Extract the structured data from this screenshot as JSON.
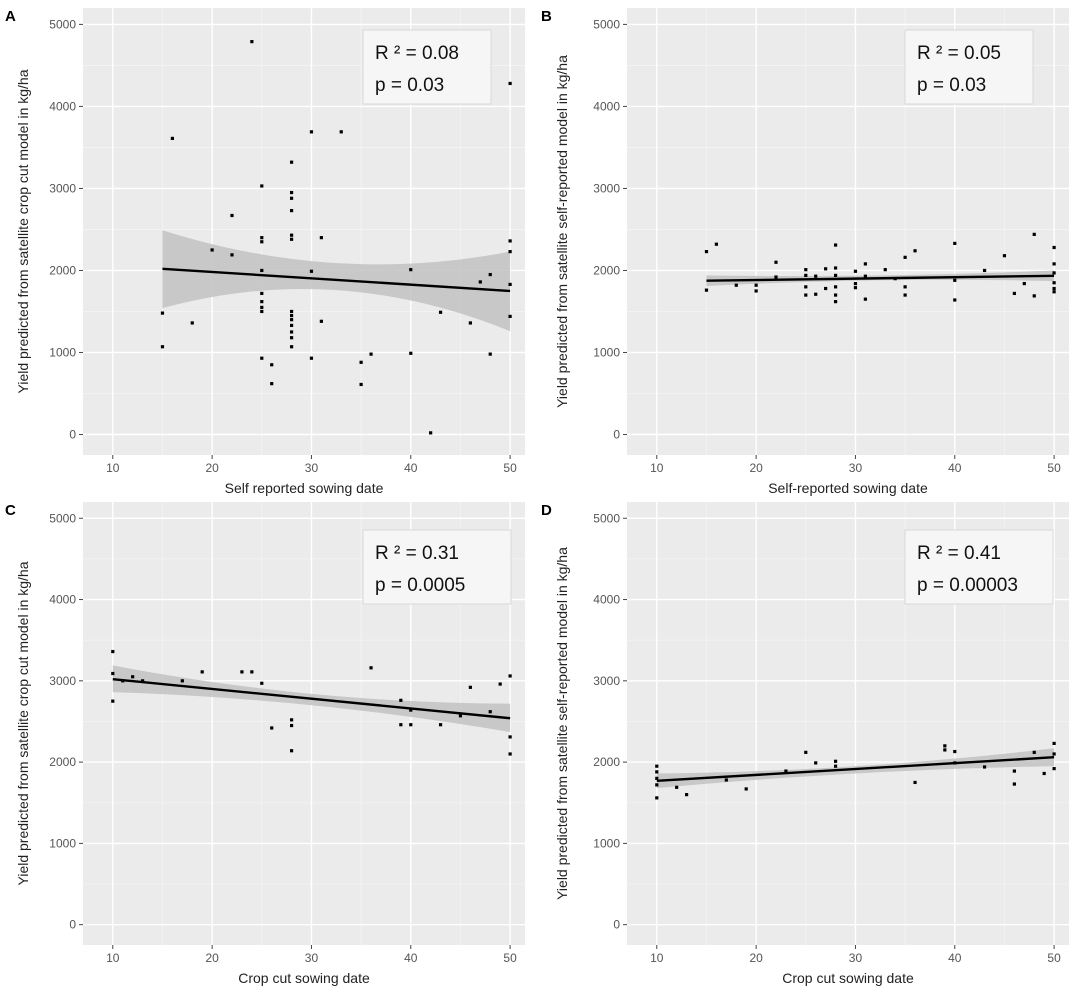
{
  "figure": {
    "colors": {
      "panel_bg": "#ebebeb",
      "grid_major": "#ffffff",
      "grid_minor": "#f4f4f4",
      "ribbon": "#c2c2c2",
      "line": "#000000",
      "point": "#000000",
      "annotation_bg": "#f6f6f6"
    }
  },
  "chart_data": [
    {
      "panel": "A",
      "type": "scatter",
      "xlabel": "Self reported sowing date",
      "ylabel": "Yield predicted from satellite crop cut model in kg/ha",
      "xlim": [
        7,
        51.5
      ],
      "ylim": [
        -250,
        5200
      ],
      "xticks": [
        10,
        20,
        30,
        40,
        50
      ],
      "yticks": [
        0,
        1000,
        2000,
        3000,
        4000,
        5000
      ],
      "annotation": {
        "r2": "R ² = 0.08",
        "p": "p = 0.03"
      },
      "fit": {
        "x": [
          15,
          50
        ],
        "y": [
          2020,
          1750
        ]
      },
      "band": {
        "x": [
          15,
          32.5,
          50
        ],
        "lower": [
          1540,
          1760,
          1260
        ],
        "upper": [
          2490,
          2090,
          2230
        ]
      },
      "points": {
        "x": [
          15,
          15,
          16,
          18,
          20,
          22,
          22,
          24,
          25,
          25,
          25,
          25,
          25,
          25,
          25,
          25,
          25,
          26,
          26,
          28,
          28,
          28,
          28,
          28,
          28,
          28,
          28,
          28,
          28,
          28,
          28,
          28,
          30,
          30,
          30,
          31,
          31,
          33,
          35,
          35,
          36,
          40,
          40,
          42,
          43,
          46,
          47,
          48,
          48,
          50,
          50,
          50,
          50,
          50
        ],
        "y": [
          1070,
          1480,
          3610,
          1360,
          2250,
          2670,
          2190,
          4790,
          3030,
          2400,
          2350,
          2000,
          1720,
          1620,
          1550,
          1500,
          930,
          850,
          620,
          3320,
          2950,
          2880,
          2730,
          2430,
          2380,
          1500,
          1450,
          1400,
          1330,
          1250,
          1180,
          1070,
          3690,
          1990,
          930,
          2400,
          1380,
          3690,
          880,
          610,
          980,
          2010,
          990,
          20,
          1490,
          1360,
          1860,
          1950,
          980,
          4280,
          2360,
          2230,
          1830,
          1440
        ]
      }
    },
    {
      "panel": "B",
      "type": "scatter",
      "xlabel": "Self-reported sowing date",
      "ylabel": "Yield predicted from satellite self-reported model in kg/ha",
      "xlim": [
        7,
        51.5
      ],
      "ylim": [
        -250,
        5200
      ],
      "xticks": [
        10,
        20,
        30,
        40,
        50
      ],
      "yticks": [
        0,
        1000,
        2000,
        3000,
        4000,
        5000
      ],
      "annotation": {
        "r2": "R ² = 0.05",
        "p": "p = 0.03"
      },
      "fit": {
        "x": [
          15,
          50
        ],
        "y": [
          1875,
          1935
        ]
      },
      "band": {
        "x": [
          15,
          32.5,
          50
        ],
        "lower": [
          1810,
          1880,
          1870
        ],
        "upper": [
          1940,
          1940,
          2000
        ]
      },
      "points": {
        "x": [
          15,
          15,
          16,
          18,
          20,
          20,
          22,
          22,
          25,
          25,
          25,
          25,
          26,
          26,
          27,
          27,
          28,
          28,
          28,
          28,
          28,
          28,
          30,
          30,
          30,
          31,
          31,
          31,
          33,
          34,
          35,
          35,
          35,
          36,
          40,
          40,
          40,
          43,
          45,
          46,
          47,
          48,
          48,
          50,
          50,
          50,
          50,
          50,
          50
        ],
        "y": [
          2230,
          1760,
          2320,
          1820,
          1820,
          1750,
          2100,
          1920,
          2010,
          1940,
          1800,
          1700,
          1930,
          1710,
          2020,
          1780,
          2310,
          2030,
          1940,
          1800,
          1700,
          1620,
          1990,
          1840,
          1790,
          2080,
          1930,
          1650,
          2010,
          1900,
          2160,
          1800,
          1700,
          2240,
          2330,
          1880,
          1640,
          2000,
          2180,
          1720,
          1840,
          2440,
          1690,
          2280,
          2080,
          1970,
          1850,
          1780,
          1740
        ]
      }
    },
    {
      "panel": "C",
      "type": "scatter",
      "xlabel": "Crop cut sowing date",
      "ylabel": "Yield predicted from satellite crop cut model in kg/ha",
      "xlim": [
        7,
        51.5
      ],
      "ylim": [
        -250,
        5200
      ],
      "xticks": [
        10,
        20,
        30,
        40,
        50
      ],
      "yticks": [
        0,
        1000,
        2000,
        3000,
        4000,
        5000
      ],
      "annotation": {
        "r2": "R ² = 0.31",
        "p": "p = 0.0005"
      },
      "fit": {
        "x": [
          10,
          50
        ],
        "y": [
          3020,
          2540
        ]
      },
      "band": {
        "x": [
          10,
          30,
          50
        ],
        "lower": [
          2860,
          2700,
          2370
        ],
        "upper": [
          3190,
          2840,
          2720
        ]
      },
      "points": {
        "x": [
          10,
          10,
          10,
          11,
          12,
          13,
          17,
          19,
          23,
          24,
          25,
          26,
          28,
          28,
          28,
          36,
          39,
          39,
          40,
          40,
          43,
          45,
          46,
          48,
          49,
          50,
          50,
          50
        ],
        "y": [
          3360,
          3090,
          2750,
          3000,
          3050,
          3000,
          3000,
          3110,
          3110,
          3110,
          2970,
          2420,
          2520,
          2450,
          2140,
          3160,
          2760,
          2460,
          2640,
          2460,
          2460,
          2570,
          2920,
          2620,
          2960,
          3060,
          2310,
          2100
        ]
      }
    },
    {
      "panel": "D",
      "type": "scatter",
      "xlabel": "Crop cut sowing date",
      "ylabel": "Yield predicted from satellite self-reported model in kg/ha",
      "xlim": [
        7,
        51.5
      ],
      "ylim": [
        -250,
        5200
      ],
      "xticks": [
        10,
        20,
        30,
        40,
        50
      ],
      "yticks": [
        0,
        1000,
        2000,
        3000,
        4000,
        5000
      ],
      "annotation": {
        "r2": "R ² = 0.41",
        "p": "p = 0.00003"
      },
      "fit": {
        "x": [
          10,
          50
        ],
        "y": [
          1770,
          2060
        ]
      },
      "band": {
        "x": [
          10,
          30,
          50
        ],
        "lower": [
          1680,
          1860,
          1950
        ],
        "upper": [
          1860,
          1950,
          2170
        ]
      },
      "points": {
        "x": [
          10,
          10,
          10,
          10,
          10,
          12,
          13,
          17,
          19,
          23,
          25,
          26,
          28,
          28,
          36,
          39,
          39,
          40,
          40,
          43,
          46,
          46,
          48,
          49,
          50,
          50,
          50
        ],
        "y": [
          1950,
          1880,
          1800,
          1720,
          1560,
          1690,
          1600,
          1780,
          1670,
          1890,
          2120,
          1990,
          2010,
          1950,
          1750,
          2200,
          2150,
          2130,
          1990,
          1940,
          1890,
          1730,
          2120,
          1860,
          2230,
          2100,
          1920
        ]
      }
    }
  ]
}
